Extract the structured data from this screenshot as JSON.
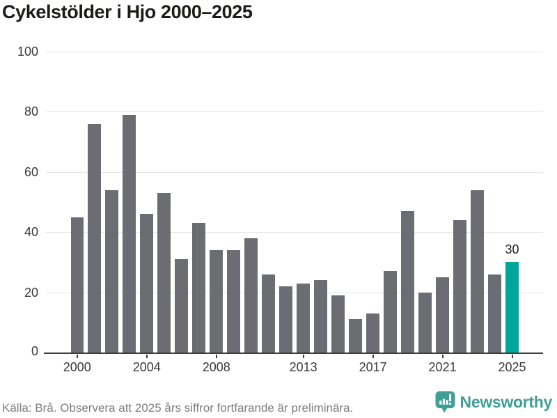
{
  "header": {
    "title": "Cykelstölder i Hjo 2000–2025"
  },
  "chart_data": {
    "type": "bar",
    "title": "Cykelstölder i Hjo 2000–2025",
    "categories": [
      2000,
      2001,
      2002,
      2003,
      2004,
      2005,
      2006,
      2007,
      2008,
      2009,
      2010,
      2011,
      2012,
      2013,
      2014,
      2015,
      2016,
      2017,
      2018,
      2019,
      2020,
      2021,
      2022,
      2023,
      2024,
      2025
    ],
    "values": [
      45,
      76,
      54,
      79,
      46,
      53,
      31,
      43,
      34,
      34,
      38,
      26,
      22,
      23,
      24,
      19,
      11,
      13,
      27,
      47,
      20,
      25,
      44,
      54,
      26,
      30
    ],
    "xlabel": "",
    "ylabel": "",
    "ylim": [
      0,
      100
    ],
    "yticks": [
      0,
      20,
      40,
      60,
      80,
      100
    ],
    "xticks": [
      2000,
      2004,
      2008,
      2013,
      2017,
      2021,
      2025
    ],
    "grid": true,
    "legend": "none",
    "highlight_category": 2025,
    "highlight_value_label": "30",
    "colors": {
      "bar": "#6c6d72",
      "highlight": "#00a69a",
      "gridline": "#e4e4e4",
      "axis": "#3e3e3e",
      "title_text": "#1b1b19",
      "tick_text": "#3a3a3a",
      "source_text": "#7d7d7d",
      "brand_teal": "#3f9e96"
    }
  },
  "footer": {
    "source": "Källa: Brå. Observera att 2025 års siffror fortfarande är preliminära.",
    "brand": "Newsworthy"
  }
}
